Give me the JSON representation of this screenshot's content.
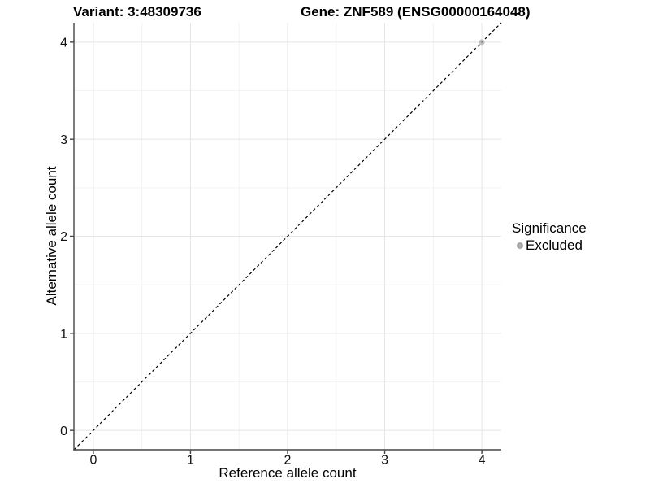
{
  "chart_data": {
    "type": "scatter",
    "title_left": "Variant: 3:48309736",
    "title_right": "Gene: ZNF589 (ENSG00000164048)",
    "xlabel": "Reference allele count",
    "ylabel": "Alternative allele count",
    "xlim": [
      -0.2,
      4.2
    ],
    "ylim": [
      -0.2,
      4.2
    ],
    "x_ticks": [
      0,
      1,
      2,
      3,
      4
    ],
    "y_ticks": [
      0,
      1,
      2,
      3,
      4
    ],
    "minor_gridlines": [
      0.5,
      1.5,
      2.5,
      3.5
    ],
    "grid": "major and minor, light gray on white",
    "identity_line": {
      "equation": "y = x",
      "style": "dashed",
      "color": "#000000"
    },
    "points": [
      {
        "x": 4,
        "y": 4,
        "significance": "Excluded"
      }
    ],
    "legend": {
      "title": "Significance",
      "position": "right",
      "items": [
        {
          "label": "Excluded",
          "color": "#a9a9a9"
        }
      ]
    },
    "colors": {
      "point_excluded": "#a9a9a9",
      "axis_line": "#454545",
      "grid_major": "#e5e5e5",
      "grid_minor": "#f3f3f3",
      "tick_label": "#111111",
      "background": "#ffffff"
    }
  }
}
